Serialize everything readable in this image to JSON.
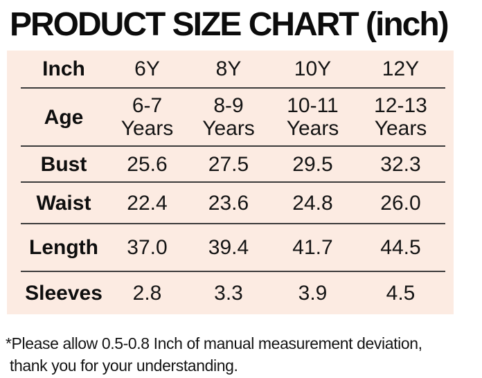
{
  "title": "PRODUCT SIZE CHART (inch)",
  "chart_data": {
    "type": "table",
    "title": "PRODUCT SIZE CHART (inch)",
    "unit": "inch",
    "columns": [
      "6Y",
      "8Y",
      "10Y",
      "12Y"
    ],
    "rows": [
      {
        "label": "Inch",
        "values": [
          "6Y",
          "8Y",
          "10Y",
          "12Y"
        ]
      },
      {
        "label": "Age",
        "values": [
          "6-7 Years",
          "8-9 Years",
          "10-11 Years",
          "12-13 Years"
        ]
      },
      {
        "label": "Bust",
        "values": [
          "25.6",
          "27.5",
          "29.5",
          "32.3"
        ]
      },
      {
        "label": "Waist",
        "values": [
          "22.4",
          "23.6",
          "24.8",
          "26.0"
        ]
      },
      {
        "label": "Length",
        "values": [
          "37.0",
          "39.4",
          "41.7",
          "44.5"
        ]
      },
      {
        "label": "Sleeves",
        "values": [
          "2.8",
          "3.3",
          "3.9",
          "4.5"
        ]
      }
    ]
  },
  "footnote": {
    "line1": "*Please allow 0.5-0.8 Inch of manual measurement deviation,",
    "line2": "thank you for your understanding."
  },
  "colors": {
    "panel_background": "#fcebe2",
    "text": "#111111",
    "divider": "#3a3a3a"
  }
}
